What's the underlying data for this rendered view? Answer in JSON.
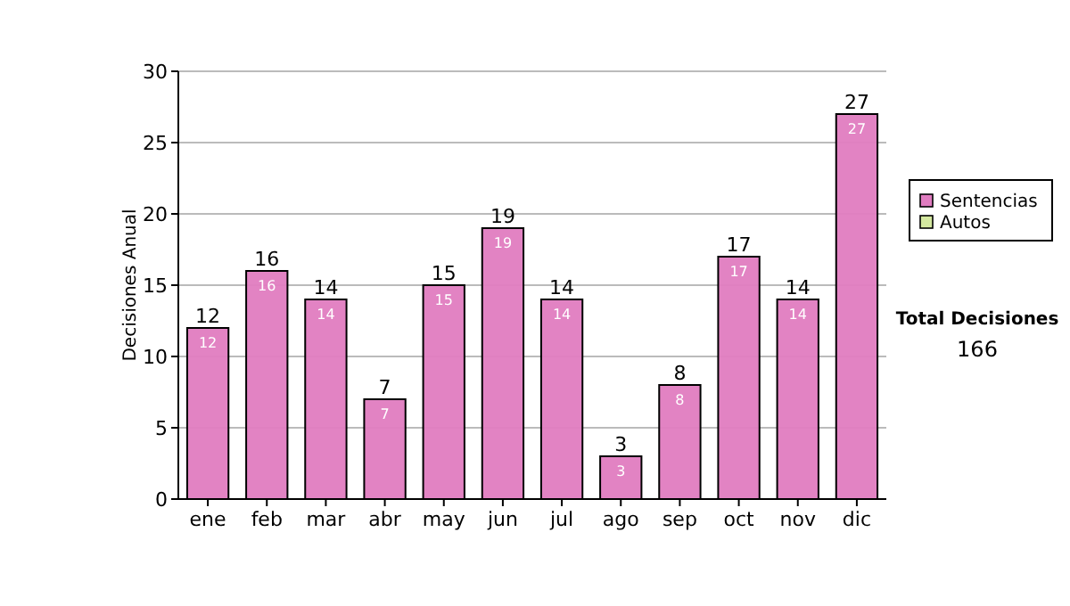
{
  "chart_data": {
    "type": "bar",
    "ylabel": "Decisiones Anual",
    "categories": [
      "ene",
      "feb",
      "mar",
      "abr",
      "may",
      "jun",
      "jul",
      "ago",
      "sep",
      "oct",
      "nov",
      "dic"
    ],
    "series": [
      {
        "name": "Sentencias",
        "color": "#e07cc0",
        "values": [
          12,
          16,
          14,
          7,
          15,
          19,
          14,
          3,
          8,
          17,
          14,
          27
        ],
        "value_labels": [
          "12",
          "16",
          "14",
          "7",
          "15",
          "19",
          "14",
          "3",
          "8",
          "17",
          "14",
          "27"
        ]
      },
      {
        "name": "Autos",
        "color": "#d4e8a0",
        "values": [
          0,
          0,
          0,
          0,
          0,
          0,
          0,
          0,
          0,
          0,
          0,
          0
        ]
      }
    ],
    "stacked": true,
    "totals": [
      "12",
      "16",
      "14",
      "7",
      "15",
      "19",
      "14",
      "3",
      "8",
      "17",
      "14",
      "27"
    ],
    "ylim": [
      0,
      30
    ],
    "yticks": [
      0,
      5,
      10,
      15,
      20,
      25,
      30
    ],
    "grid": "y",
    "legend": "right",
    "annotations": [
      "Total Decisiones",
      "166"
    ]
  }
}
